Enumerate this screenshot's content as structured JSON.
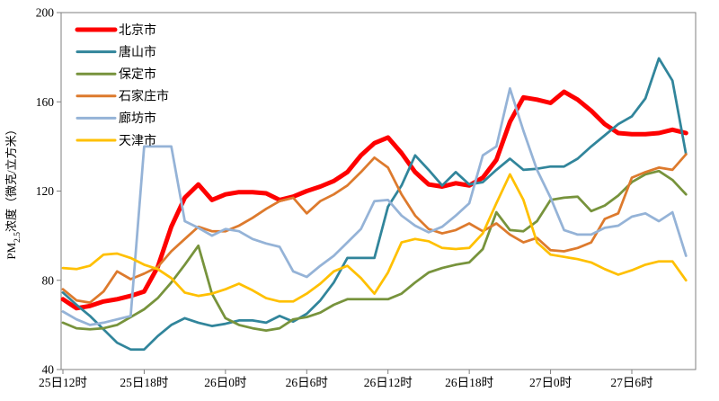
{
  "chart_data": {
    "type": "line",
    "title": "",
    "ylabel": {
      "prefix": "PM",
      "subscript": "2.5",
      "suffix": "浓度（微克/立方米）"
    },
    "x_tick_labels": [
      "25日12时",
      "25日18时",
      "26日0时",
      "26日6时",
      "26日12时",
      "26日18时",
      "27日0时",
      "27日6时"
    ],
    "x_tick_hours": [
      0,
      6,
      12,
      18,
      24,
      30,
      36,
      42
    ],
    "y_ticks": [
      40,
      80,
      120,
      160,
      200
    ],
    "ylim": [
      40,
      200
    ],
    "x_hours_total": 46,
    "grid": false,
    "legend_position": "top-left-inside",
    "axis_color": "#7f7f7f",
    "background_color": "#ffffff",
    "series": [
      {
        "name": "北京市",
        "color": "#fe0000",
        "width": 5,
        "values": [
          71.5,
          67.5,
          68.5,
          70.5,
          71.5,
          73,
          75,
          86,
          104,
          117,
          123,
          116,
          118.5,
          119.5,
          119.5,
          119,
          116,
          117.5,
          120,
          122,
          124.5,
          128.5,
          136,
          141.5,
          144,
          137,
          128.5,
          123,
          122,
          123.5,
          122.5,
          126,
          134,
          151,
          162,
          161,
          159.5,
          164.5,
          161,
          156,
          150,
          146,
          145.5,
          145.5,
          146,
          147.5,
          146
        ]
      },
      {
        "name": "唐山市",
        "color": "#31859b",
        "width": 2.75,
        "values": [
          74.5,
          69,
          64,
          58,
          52,
          49,
          49,
          55,
          60,
          63,
          61,
          59.5,
          60.5,
          62,
          62,
          61,
          64,
          61.5,
          65,
          71,
          79,
          90,
          90,
          90,
          113,
          122.5,
          136,
          129.5,
          122.5,
          128.5,
          123,
          124,
          129.5,
          134.5,
          129.5,
          130,
          131,
          131,
          134.5,
          140,
          145,
          150,
          153.5,
          161.5,
          179.5,
          169.5,
          136.5
        ]
      },
      {
        "name": "保定市",
        "color": "#77933c",
        "width": 2.75,
        "values": [
          61,
          58.5,
          58,
          58.5,
          60,
          63.5,
          67,
          72,
          79,
          87,
          95.5,
          74,
          63,
          60,
          58.5,
          57.5,
          58.5,
          62.5,
          63.5,
          65.5,
          69,
          71.5,
          71.5,
          71.5,
          71.5,
          74,
          79,
          83.5,
          85.5,
          87,
          88,
          94,
          110.5,
          102.5,
          102,
          106.5,
          116,
          117,
          117.5,
          111,
          113.5,
          118,
          124,
          127.5,
          129,
          125,
          118.5
        ]
      },
      {
        "name": "石家庄市",
        "color": "#dd7a2d",
        "width": 2.75,
        "values": [
          76,
          71,
          70,
          75,
          84,
          80.5,
          83,
          86,
          93,
          98.5,
          104,
          102,
          102,
          104.5,
          108,
          112,
          115.5,
          117,
          110,
          115.5,
          118.5,
          122.5,
          128.5,
          135,
          130.5,
          118.5,
          109,
          103,
          101,
          102.5,
          105.5,
          102,
          105.5,
          100.5,
          97,
          99,
          93.5,
          93,
          94.5,
          97,
          107.5,
          110,
          126,
          128.5,
          130.5,
          129.5,
          136.5
        ]
      },
      {
        "name": "廊坊市",
        "color": "#95b3d7",
        "width": 2.75,
        "values": [
          66,
          62.5,
          60,
          61,
          62.5,
          64,
          140,
          140,
          140,
          106.5,
          103.5,
          100,
          103,
          102,
          98.5,
          96.5,
          95,
          84,
          81.5,
          86.5,
          91,
          97,
          103,
          115.5,
          116,
          109,
          104.5,
          101.5,
          104,
          109,
          114.5,
          136,
          140,
          166,
          147,
          129.5,
          117,
          102.5,
          100.5,
          100.5,
          103.5,
          104.5,
          108.5,
          110,
          106.5,
          110.5,
          91
        ]
      },
      {
        "name": "天津市",
        "color": "#ffc000",
        "width": 2.75,
        "values": [
          85.5,
          85,
          86.5,
          91.5,
          92,
          90,
          87,
          85,
          81,
          74.5,
          73,
          74,
          76,
          78.5,
          75.5,
          72,
          70.5,
          70.5,
          74,
          78.5,
          84,
          86.5,
          81,
          74,
          83.5,
          97,
          98.5,
          97.5,
          94.5,
          94,
          94.5,
          101,
          114.5,
          127.5,
          116,
          97,
          91.5,
          90.5,
          89.5,
          88,
          85,
          82.5,
          84.5,
          87,
          88.5,
          88.5,
          80
        ]
      }
    ]
  }
}
